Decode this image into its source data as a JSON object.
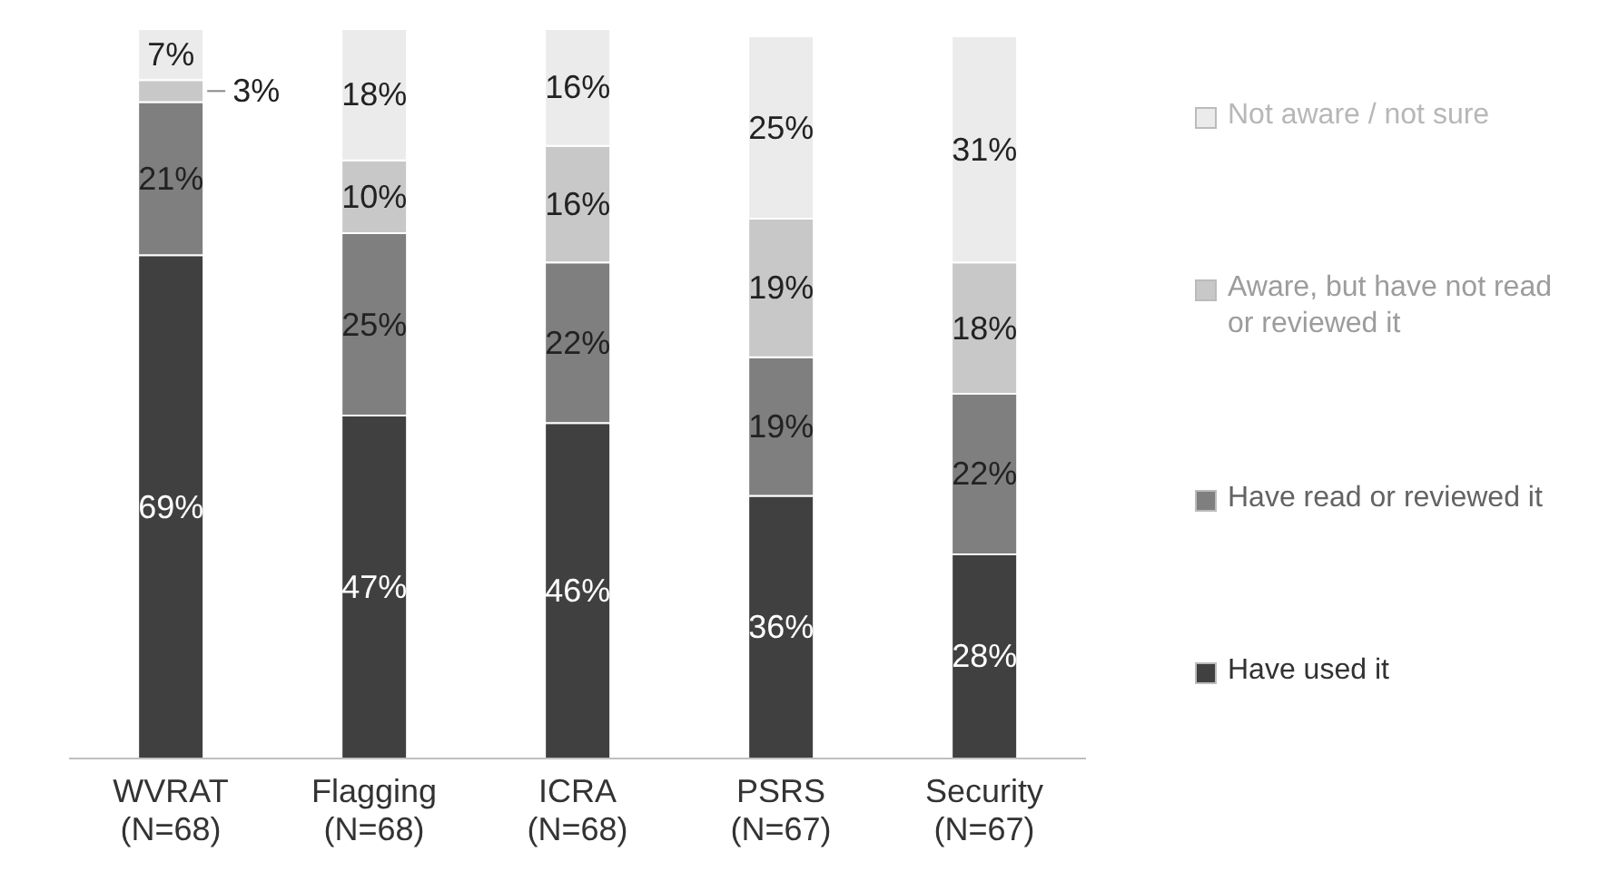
{
  "chart_data": {
    "type": "bar",
    "stacked": true,
    "categories": [
      "WVRAT\n(N=68)",
      "Flagging\n(N=68)",
      "ICRA\n(N=68)",
      "PSRS\n(N=67)",
      "Security\n(N=67)"
    ],
    "series": [
      {
        "name": "Have used it",
        "color": "#404040",
        "values": [
          69,
          47,
          46,
          36,
          28
        ],
        "value_labels": [
          "69%",
          "47%",
          "46%",
          "36%",
          "28%"
        ]
      },
      {
        "name": "Have read or reviewed it",
        "color": "#7f7f7f",
        "values": [
          21,
          25,
          22,
          19,
          22
        ],
        "value_labels": [
          "21%",
          "25%",
          "22%",
          "19%",
          "22%"
        ]
      },
      {
        "name": "Aware, but have not read or reviewed it",
        "color": "#c8c8c8",
        "values": [
          3,
          10,
          16,
          19,
          18
        ],
        "value_labels": [
          "3%",
          "10%",
          "16%",
          "19%",
          "18%"
        ]
      },
      {
        "name": "Not aware / not sure",
        "color": "#ebebeb",
        "values": [
          7,
          18,
          16,
          25,
          31
        ],
        "value_labels": [
          "7%",
          "18%",
          "16%",
          "25%",
          "31%"
        ]
      }
    ],
    "legend": "right"
  }
}
